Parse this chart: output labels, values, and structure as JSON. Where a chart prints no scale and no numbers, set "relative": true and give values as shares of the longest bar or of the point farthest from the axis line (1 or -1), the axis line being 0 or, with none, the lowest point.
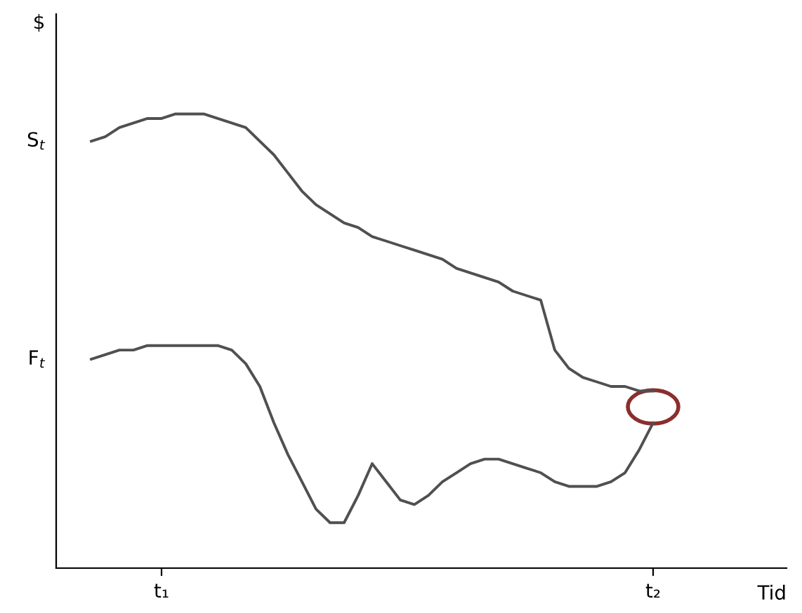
{
  "chart_data": {
    "type": "line",
    "relative": true,
    "xlabel": "Tid",
    "ylabel": "$",
    "grid": false,
    "legend": false,
    "marker": "none",
    "line_style": "solid",
    "categories": [
      null,
      null,
      null,
      null,
      null,
      "t₁",
      null,
      null,
      null,
      null,
      null,
      null,
      null,
      null,
      null,
      null,
      null,
      null,
      null,
      null,
      null,
      null,
      null,
      null,
      null,
      null,
      null,
      null,
      null,
      null,
      null,
      null,
      null,
      null,
      null,
      null,
      null,
      null,
      null,
      null,
      "t₂"
    ],
    "series": [
      {
        "color": "#505050",
        "values": [
          0.94,
          0.95,
          0.97,
          0.98,
          0.99,
          0.99,
          1.0,
          1.0,
          1.0,
          0.99,
          0.98,
          0.97,
          0.94,
          0.91,
          0.87,
          0.83,
          0.8,
          0.78,
          0.76,
          0.75,
          0.73,
          0.72,
          0.71,
          0.7,
          0.69,
          0.68,
          0.66,
          0.65,
          0.64,
          0.63,
          0.61,
          0.6,
          0.59,
          0.48,
          0.44,
          0.42,
          0.41,
          0.4,
          0.4,
          0.39,
          0.39
        ]
      },
      {
        "color": "#505050",
        "values": [
          0.46,
          0.47,
          0.48,
          0.48,
          0.49,
          0.49,
          0.49,
          0.49,
          0.49,
          0.49,
          0.48,
          0.45,
          0.4,
          0.32,
          0.25,
          0.19,
          0.13,
          0.1,
          0.1,
          0.16,
          0.23,
          0.19,
          0.15,
          0.14,
          0.16,
          0.19,
          0.21,
          0.23,
          0.24,
          0.24,
          0.23,
          0.22,
          0.21,
          0.19,
          0.18,
          0.18,
          0.18,
          0.19,
          0.21,
          0.26,
          0.32
        ]
      }
    ],
    "annotations": [
      "S$_{t}$",
      "F$_{t}$"
    ]
  }
}
